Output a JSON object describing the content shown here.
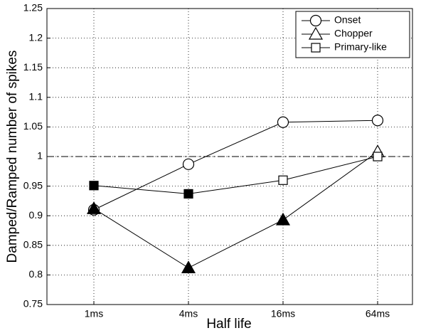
{
  "chart_data": {
    "type": "line",
    "categories": [
      "1ms",
      "4ms",
      "16ms",
      "64ms"
    ],
    "x_label": "Half life",
    "y_label": "Damped/Ramped number of spikes",
    "ylim": [
      0.75,
      1.25
    ],
    "yticks": [
      0.75,
      0.8,
      0.85,
      0.9,
      0.95,
      1,
      1.05,
      1.1,
      1.15,
      1.2,
      1.25
    ],
    "grid": true,
    "hline": 1,
    "legend": "upper right",
    "series": [
      {
        "name": "Onset",
        "marker": "circle",
        "color": "#000",
        "marker_fill": [
          "none",
          "none",
          "none",
          "none"
        ],
        "values": [
          0.91,
          0.987,
          1.058,
          1.061
        ]
      },
      {
        "name": "Chopper",
        "marker": "triangle",
        "color": "#000",
        "marker_fill": [
          "#000",
          "#000",
          "#000",
          "none"
        ],
        "values": [
          0.912,
          0.812,
          0.893,
          1.008
        ]
      },
      {
        "name": "Primary-like",
        "marker": "square",
        "color": "#000",
        "marker_fill": [
          "#000",
          "#000",
          "none",
          "none"
        ],
        "values": [
          0.951,
          0.937,
          0.96,
          1.0
        ]
      }
    ]
  }
}
